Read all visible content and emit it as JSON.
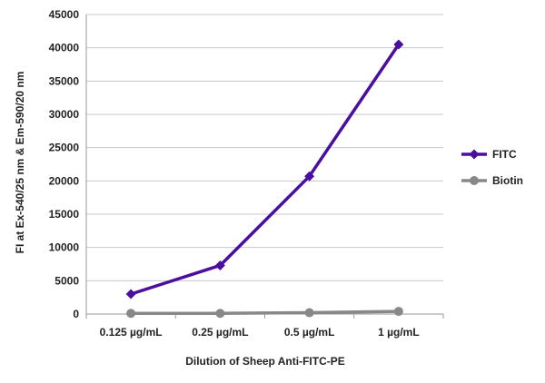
{
  "chart_data": {
    "type": "line",
    "title": "",
    "xlabel": "Dilution of Sheep Anti-FITC-PE",
    "ylabel": "FI at Ex-540/25 nm & Em-590/20 nm",
    "categories": [
      "0.125 µg/mL",
      "0.25 µg/mL",
      "0.5 µg/mL",
      "1 µg/mL"
    ],
    "ylim": [
      0,
      45000
    ],
    "yticks": [
      0,
      5000,
      10000,
      15000,
      20000,
      25000,
      30000,
      35000,
      40000,
      45000
    ],
    "grid": "horizontal",
    "legend_position": "right",
    "series": [
      {
        "name": "FITC",
        "color": "#4b0fa0",
        "marker": "diamond",
        "values": [
          3000,
          7300,
          20700,
          40500
        ]
      },
      {
        "name": "Biotin",
        "color": "#888888",
        "marker": "circle",
        "values": [
          100,
          100,
          200,
          400
        ]
      }
    ]
  }
}
